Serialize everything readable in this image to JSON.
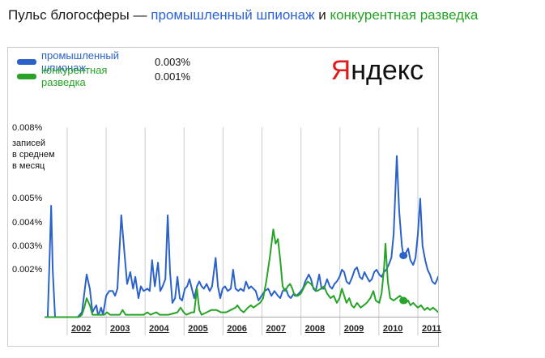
{
  "title": {
    "prefix": "Пульс блогосферы — ",
    "term1": "промышленный шпионаж",
    "connector": " и ",
    "term2": "конкурентная разведка"
  },
  "legend": {
    "items": [
      {
        "label": "промышленный шпионаж",
        "value": "0.003%",
        "color": "#2b62c9"
      },
      {
        "label": "конкурентная разведка",
        "value": "0.001%",
        "color": "#27a427"
      }
    ]
  },
  "logo": {
    "first_letter": "Я",
    "rest": "ндекс",
    "first_color": "#e21a1a",
    "rest_color": "#111111"
  },
  "colors": {
    "series_blue": "#2b62c9",
    "series_green": "#27a427",
    "gridline": "#cccccc",
    "axis_line": "#aaaaaa",
    "panel_border": "#cccccc"
  },
  "chart_data": {
    "type": "line",
    "title": "Пульс блогосферы",
    "ylabel_lines": [
      "записей",
      "в среднем",
      "в месяц"
    ],
    "y_ticks": [
      {
        "value": 0.002,
        "label": "0.002%"
      },
      {
        "value": 0.003,
        "label": "0.003%"
      },
      {
        "value": 0.004,
        "label": "0.004%"
      },
      {
        "value": 0.005,
        "label": "0.005%"
      },
      {
        "value": 0.008,
        "label": "0.008%"
      }
    ],
    "x_ticks": [
      {
        "year": 2002,
        "label": "2002"
      },
      {
        "year": 2003,
        "label": "2003"
      },
      {
        "year": 2004,
        "label": "2004"
      },
      {
        "year": 2005,
        "label": "2005"
      },
      {
        "year": 2006,
        "label": "2006"
      },
      {
        "year": 2007,
        "label": "2007"
      },
      {
        "year": 2008,
        "label": "2008"
      },
      {
        "year": 2009,
        "label": "2009"
      },
      {
        "year": 2010,
        "label": "2010"
      },
      {
        "year": 2011,
        "label": "2011"
      }
    ],
    "x_range": [
      2001.44,
      2011.52
    ],
    "y_range": [
      0,
      0.008
    ],
    "grid": true,
    "legend_position": "top-left",
    "series": [
      {
        "name": "промышленный шпионаж",
        "color": "#2b62c9",
        "current_value": "0.003%",
        "marker": {
          "x": 2010.63,
          "y": 0.0026
        },
        "points": [
          [
            2001.44,
            0
          ],
          [
            2001.5,
            0
          ],
          [
            2001.54,
            0.002
          ],
          [
            2001.59,
            0.0047
          ],
          [
            2001.63,
            0.002
          ],
          [
            2001.69,
            0
          ],
          [
            2002.27,
            0
          ],
          [
            2002.38,
            0.0002
          ],
          [
            2002.44,
            0.001
          ],
          [
            2002.5,
            0.0018
          ],
          [
            2002.58,
            0.0012
          ],
          [
            2002.65,
            0.0002
          ],
          [
            2002.71,
            0.0004
          ],
          [
            2002.75,
            0.0005
          ],
          [
            2002.79,
            0.0001
          ],
          [
            2002.83,
            0.0002
          ],
          [
            2002.87,
            0.0004
          ],
          [
            2002.92,
            0.0001
          ],
          [
            2003.0,
            0.0009
          ],
          [
            2003.08,
            0.0011
          ],
          [
            2003.17,
            0.0011
          ],
          [
            2003.23,
            0.0009
          ],
          [
            2003.29,
            0.0012
          ],
          [
            2003.39,
            0.0043
          ],
          [
            2003.48,
            0.0025
          ],
          [
            2003.54,
            0.0014
          ],
          [
            2003.62,
            0.0019
          ],
          [
            2003.69,
            0.0012
          ],
          [
            2003.75,
            0.0017
          ],
          [
            2003.83,
            0.0008
          ],
          [
            2003.89,
            0.0013
          ],
          [
            2003.96,
            0.0011
          ],
          [
            2004.06,
            0.0012
          ],
          [
            2004.12,
            0.0011
          ],
          [
            2004.18,
            0.0024
          ],
          [
            2004.25,
            0.0013
          ],
          [
            2004.33,
            0.0023
          ],
          [
            2004.39,
            0.0011
          ],
          [
            2004.45,
            0.0013
          ],
          [
            2004.52,
            0.0016
          ],
          [
            2004.58,
            0.0043
          ],
          [
            2004.64,
            0.0019
          ],
          [
            2004.7,
            0.0006
          ],
          [
            2004.77,
            0.0008
          ],
          [
            2004.83,
            0.0017
          ],
          [
            2004.89,
            0.0008
          ],
          [
            2004.95,
            0.0007
          ],
          [
            2005.02,
            0.0012
          ],
          [
            2005.08,
            0.0013
          ],
          [
            2005.14,
            0.0016
          ],
          [
            2005.2,
            0.0012
          ],
          [
            2005.26,
            0.0008
          ],
          [
            2005.33,
            0.0013
          ],
          [
            2005.39,
            0.0015
          ],
          [
            2005.45,
            0.0013
          ],
          [
            2005.51,
            0.0012
          ],
          [
            2005.58,
            0.0014
          ],
          [
            2005.66,
            0.0011
          ],
          [
            2005.72,
            0.0013
          ],
          [
            2005.81,
            0.0025
          ],
          [
            2005.87,
            0.0013
          ],
          [
            2005.93,
            0.0008
          ],
          [
            2005.99,
            0.0012
          ],
          [
            2006.05,
            0.0013
          ],
          [
            2006.12,
            0.0011
          ],
          [
            2006.2,
            0.0012
          ],
          [
            2006.26,
            0.002
          ],
          [
            2006.32,
            0.0012
          ],
          [
            2006.39,
            0.0011
          ],
          [
            2006.45,
            0.0012
          ],
          [
            2006.53,
            0.0011
          ],
          [
            2006.59,
            0.0015
          ],
          [
            2006.66,
            0.0012
          ],
          [
            2006.72,
            0.0013
          ],
          [
            2006.78,
            0.0012
          ],
          [
            2006.84,
            0.0011
          ],
          [
            2006.91,
            0.0007
          ],
          [
            2006.99,
            0.0009
          ],
          [
            2007.07,
            0.0011
          ],
          [
            2007.16,
            0.0012
          ],
          [
            2007.24,
            0.0009
          ],
          [
            2007.32,
            0.0011
          ],
          [
            2007.41,
            0.0009
          ],
          [
            2007.47,
            0.0008
          ],
          [
            2007.53,
            0.0011
          ],
          [
            2007.61,
            0.0012
          ],
          [
            2007.68,
            0.0009
          ],
          [
            2007.74,
            0.0008
          ],
          [
            2007.82,
            0.001
          ],
          [
            2007.88,
            0.0009
          ],
          [
            2007.95,
            0.001
          ],
          [
            2008.05,
            0.0012
          ],
          [
            2008.11,
            0.0015
          ],
          [
            2008.2,
            0.0018
          ],
          [
            2008.26,
            0.0016
          ],
          [
            2008.32,
            0.0012
          ],
          [
            2008.38,
            0.0011
          ],
          [
            2008.47,
            0.0018
          ],
          [
            2008.53,
            0.0012
          ],
          [
            2008.59,
            0.0012
          ],
          [
            2008.67,
            0.0016
          ],
          [
            2008.74,
            0.0013
          ],
          [
            2008.8,
            0.0012
          ],
          [
            2008.86,
            0.0014
          ],
          [
            2008.92,
            0.0015
          ],
          [
            2008.99,
            0.0017
          ],
          [
            2009.05,
            0.002
          ],
          [
            2009.11,
            0.0019
          ],
          [
            2009.17,
            0.0015
          ],
          [
            2009.24,
            0.0014
          ],
          [
            2009.32,
            0.0017
          ],
          [
            2009.38,
            0.002
          ],
          [
            2009.44,
            0.0021
          ],
          [
            2009.51,
            0.0017
          ],
          [
            2009.57,
            0.0016
          ],
          [
            2009.63,
            0.0019
          ],
          [
            2009.69,
            0.0017
          ],
          [
            2009.76,
            0.0015
          ],
          [
            2009.82,
            0.0016
          ],
          [
            2009.88,
            0.0019
          ],
          [
            2009.94,
            0.002
          ],
          [
            2010.01,
            0.0018
          ],
          [
            2010.07,
            0.0017
          ],
          [
            2010.13,
            0.0019
          ],
          [
            2010.19,
            0.002
          ],
          [
            2010.25,
            0.0022
          ],
          [
            2010.32,
            0.0025
          ],
          [
            2010.38,
            0.0035
          ],
          [
            2010.46,
            0.0068
          ],
          [
            2010.52,
            0.0045
          ],
          [
            2010.59,
            0.003
          ],
          [
            2010.63,
            0.0026
          ],
          [
            2010.69,
            0.0027
          ],
          [
            2010.75,
            0.0029
          ],
          [
            2010.81,
            0.0024
          ],
          [
            2010.88,
            0.0022
          ],
          [
            2010.94,
            0.0025
          ],
          [
            2011.0,
            0.0035
          ],
          [
            2011.06,
            0.005
          ],
          [
            2011.12,
            0.003
          ],
          [
            2011.19,
            0.0024
          ],
          [
            2011.25,
            0.002
          ],
          [
            2011.31,
            0.0018
          ],
          [
            2011.37,
            0.0015
          ],
          [
            2011.44,
            0.0014
          ],
          [
            2011.5,
            0.0016
          ],
          [
            2011.52,
            0.0017
          ]
        ]
      },
      {
        "name": "конкурентная разведка",
        "color": "#27a427",
        "current_value": "0.001%",
        "marker": {
          "x": 2010.63,
          "y": 0.0007
        },
        "points": [
          [
            2001.44,
            0
          ],
          [
            2002.3,
            0
          ],
          [
            2002.38,
            0.0001
          ],
          [
            2002.44,
            0.0004
          ],
          [
            2002.5,
            0.0008
          ],
          [
            2002.58,
            0.0005
          ],
          [
            2002.65,
            0.0001
          ],
          [
            2002.95,
            0.0001
          ],
          [
            2003.02,
            0.0002
          ],
          [
            2003.1,
            0.0001
          ],
          [
            2003.35,
            0.0001
          ],
          [
            2003.42,
            0.0003
          ],
          [
            2003.5,
            0.0001
          ],
          [
            2003.96,
            0.0001
          ],
          [
            2004.06,
            0.0002
          ],
          [
            2004.14,
            0.0001
          ],
          [
            2004.29,
            0.0002
          ],
          [
            2004.37,
            0.0001
          ],
          [
            2004.6,
            0.0001
          ],
          [
            2004.83,
            0.0002
          ],
          [
            2004.91,
            0.0004
          ],
          [
            2004.99,
            0.0002
          ],
          [
            2005.06,
            0.0001
          ],
          [
            2005.2,
            0.0002
          ],
          [
            2005.26,
            0.0002
          ],
          [
            2005.33,
            0.0012
          ],
          [
            2005.39,
            0.0003
          ],
          [
            2005.45,
            0.0001
          ],
          [
            2005.58,
            0.0002
          ],
          [
            2005.7,
            0.0003
          ],
          [
            2005.83,
            0.0003
          ],
          [
            2005.95,
            0.0002
          ],
          [
            2006.08,
            0.0002
          ],
          [
            2006.2,
            0.0003
          ],
          [
            2006.32,
            0.0004
          ],
          [
            2006.37,
            0.0005
          ],
          [
            2006.45,
            0.0003
          ],
          [
            2006.53,
            0.0002
          ],
          [
            2006.64,
            0.0004
          ],
          [
            2006.72,
            0.0005
          ],
          [
            2006.78,
            0.0004
          ],
          [
            2006.86,
            0.0005
          ],
          [
            2006.95,
            0.0006
          ],
          [
            2007.03,
            0.0008
          ],
          [
            2007.11,
            0.0015
          ],
          [
            2007.2,
            0.0025
          ],
          [
            2007.29,
            0.0037
          ],
          [
            2007.35,
            0.0031
          ],
          [
            2007.41,
            0.0033
          ],
          [
            2007.47,
            0.0024
          ],
          [
            2007.53,
            0.0013
          ],
          [
            2007.59,
            0.0011
          ],
          [
            2007.66,
            0.0013
          ],
          [
            2007.72,
            0.0014
          ],
          [
            2007.78,
            0.0012
          ],
          [
            2007.84,
            0.0009
          ],
          [
            2007.92,
            0.0009
          ],
          [
            2008.0,
            0.001
          ],
          [
            2008.09,
            0.0013
          ],
          [
            2008.17,
            0.0015
          ],
          [
            2008.26,
            0.0014
          ],
          [
            2008.34,
            0.0012
          ],
          [
            2008.42,
            0.0011
          ],
          [
            2008.51,
            0.0012
          ],
          [
            2008.59,
            0.0013
          ],
          [
            2008.67,
            0.001
          ],
          [
            2008.76,
            0.0008
          ],
          [
            2008.84,
            0.0009
          ],
          [
            2008.92,
            0.0006
          ],
          [
            2008.99,
            0.0008
          ],
          [
            2009.05,
            0.0012
          ],
          [
            2009.11,
            0.0009
          ],
          [
            2009.17,
            0.0006
          ],
          [
            2009.24,
            0.0008
          ],
          [
            2009.3,
            0.0005
          ],
          [
            2009.36,
            0.0004
          ],
          [
            2009.44,
            0.0006
          ],
          [
            2009.53,
            0.0004
          ],
          [
            2009.61,
            0.0005
          ],
          [
            2009.69,
            0.0006
          ],
          [
            2009.78,
            0.0008
          ],
          [
            2009.86,
            0.0011
          ],
          [
            2009.92,
            0.0007
          ],
          [
            2010.01,
            0.0006
          ],
          [
            2010.07,
            0.001
          ],
          [
            2010.13,
            0.002
          ],
          [
            2010.17,
            0.0031
          ],
          [
            2010.23,
            0.0015
          ],
          [
            2010.29,
            0.0008
          ],
          [
            2010.38,
            0.0007
          ],
          [
            2010.46,
            0.0008
          ],
          [
            2010.54,
            0.0009
          ],
          [
            2010.6,
            0.0008
          ],
          [
            2010.63,
            0.0007
          ],
          [
            2010.69,
            0.0006
          ],
          [
            2010.75,
            0.0007
          ],
          [
            2010.81,
            0.0005
          ],
          [
            2010.88,
            0.0006
          ],
          [
            2010.94,
            0.0005
          ],
          [
            2011.0,
            0.0004
          ],
          [
            2011.08,
            0.0005
          ],
          [
            2011.17,
            0.0003
          ],
          [
            2011.25,
            0.0004
          ],
          [
            2011.31,
            0.0003
          ],
          [
            2011.39,
            0.0004
          ],
          [
            2011.46,
            0.0003
          ],
          [
            2011.52,
            0.0002
          ]
        ]
      }
    ]
  }
}
